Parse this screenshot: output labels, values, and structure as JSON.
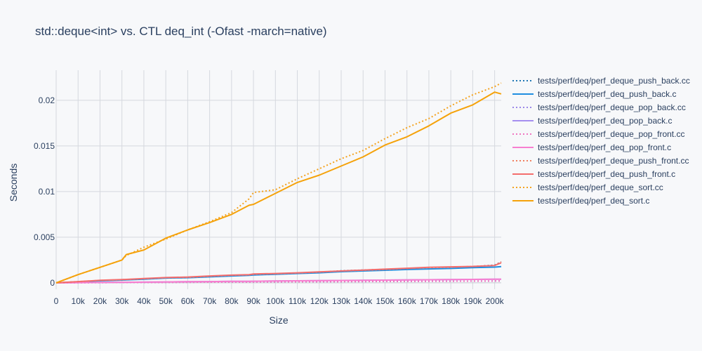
{
  "chart_data": {
    "type": "line",
    "title": "std::deque<int> vs. CTL deq_int (-Ofast -march=native)",
    "xlabel": "Size",
    "ylabel": "Seconds",
    "xlim": [
      0,
      203000
    ],
    "ylim": [
      -0.0007,
      0.0233
    ],
    "x_ticks": [
      0,
      10000,
      20000,
      30000,
      40000,
      50000,
      60000,
      70000,
      80000,
      90000,
      100000,
      110000,
      120000,
      130000,
      140000,
      150000,
      160000,
      170000,
      180000,
      190000,
      200000
    ],
    "x_tick_labels": [
      "0",
      "10k",
      "20k",
      "30k",
      "40k",
      "50k",
      "60k",
      "70k",
      "80k",
      "90k",
      "100k",
      "110k",
      "120k",
      "130k",
      "140k",
      "150k",
      "160k",
      "170k",
      "180k",
      "190k",
      "200k"
    ],
    "y_ticks": [
      0,
      0.005,
      0.01,
      0.015,
      0.02
    ],
    "y_tick_labels": [
      "0",
      "0.005",
      "0.01",
      "0.015",
      "0.02"
    ],
    "grid": true,
    "legend_position": "right",
    "x": [
      0,
      10000,
      20000,
      30000,
      32000,
      40000,
      50000,
      60000,
      70000,
      80000,
      88000,
      90000,
      100000,
      110000,
      120000,
      130000,
      140000,
      150000,
      160000,
      170000,
      180000,
      190000,
      200000,
      203000
    ],
    "series": [
      {
        "name": "tests/perf/deq/perf_deque_push_back.cc",
        "color": "#1f77b4",
        "dash": "dot",
        "values": [
          0,
          0.00012,
          0.00024,
          0.00032,
          0.00034,
          0.00042,
          0.00055,
          0.00058,
          0.00068,
          0.00078,
          0.00086,
          0.0009,
          0.00098,
          0.00106,
          0.00116,
          0.00132,
          0.0014,
          0.00148,
          0.00156,
          0.00162,
          0.00168,
          0.00178,
          0.00195,
          0.0023
        ]
      },
      {
        "name": "tests/perf/deq/perf_deq_push_back.c",
        "color": "#1f8ee0",
        "dash": "solid",
        "values": [
          0,
          0.00011,
          0.00022,
          0.0003,
          0.00032,
          0.0004,
          0.00052,
          0.00056,
          0.00065,
          0.00075,
          0.00082,
          0.00086,
          0.00094,
          0.00102,
          0.0011,
          0.00122,
          0.0013,
          0.00138,
          0.00146,
          0.00152,
          0.00158,
          0.00166,
          0.00172,
          0.00178
        ]
      },
      {
        "name": "tests/perf/deq/perf_deque_pop_back.cc",
        "color": "#9b87e8",
        "dash": "dot",
        "values": [
          0,
          1e-05,
          2e-05,
          3e-05,
          3e-05,
          4e-05,
          5e-05,
          6e-05,
          7e-05,
          8e-05,
          8e-05,
          9e-05,
          0.0001,
          0.00011,
          0.00012,
          0.00013,
          0.00014,
          0.00015,
          0.00016,
          0.00017,
          0.00018,
          0.00019,
          0.0002,
          0.0002
        ]
      },
      {
        "name": "tests/perf/deq/perf_deq_pop_back.c",
        "color": "#a58ef0",
        "dash": "solid",
        "values": [
          0,
          2e-05,
          4e-05,
          6e-05,
          6e-05,
          8e-05,
          0.0001,
          0.00012,
          0.00014,
          0.00016,
          0.00017,
          0.00018,
          0.0002,
          0.00022,
          0.00024,
          0.00026,
          0.00028,
          0.0003,
          0.00032,
          0.00034,
          0.00036,
          0.00038,
          0.0004,
          0.0004
        ]
      },
      {
        "name": "tests/perf/deq/perf_deque_pop_front.cc",
        "color": "#f075c0",
        "dash": "dot",
        "values": [
          0,
          1e-05,
          2e-05,
          3e-05,
          3e-05,
          4e-05,
          5e-05,
          6e-05,
          7e-05,
          8e-05,
          8e-05,
          9e-05,
          0.0001,
          0.00011,
          0.00012,
          0.00013,
          0.00014,
          0.00015,
          0.00016,
          0.00017,
          0.00018,
          0.00019,
          0.0002,
          0.0002
        ]
      },
      {
        "name": "tests/perf/deq/perf_deq_pop_front.c",
        "color": "#f77fd0",
        "dash": "solid",
        "values": [
          0,
          2e-05,
          4e-05,
          6e-05,
          6e-05,
          8e-05,
          0.0001,
          0.00012,
          0.00014,
          0.00016,
          0.00017,
          0.00018,
          0.0002,
          0.00022,
          0.00024,
          0.00026,
          0.00028,
          0.0003,
          0.00032,
          0.00034,
          0.00036,
          0.00038,
          0.0004,
          0.0004
        ]
      },
      {
        "name": "tests/perf/deq/perf_deque_push_front.cc",
        "color": "#f08060",
        "dash": "dot",
        "values": [
          0,
          0.00013,
          0.00026,
          0.00035,
          0.00036,
          0.00045,
          0.00056,
          0.0006,
          0.00072,
          0.00082,
          0.00088,
          0.00094,
          0.001,
          0.00108,
          0.00118,
          0.0013,
          0.00138,
          0.00146,
          0.00158,
          0.00166,
          0.0017,
          0.0018,
          0.0019,
          0.0023
        ]
      },
      {
        "name": "tests/perf/deq/perf_deq_push_front.c",
        "color": "#f46d6d",
        "dash": "solid",
        "values": [
          0,
          0.00014,
          0.00028,
          0.00036,
          0.00038,
          0.00048,
          0.00058,
          0.00064,
          0.00075,
          0.00085,
          0.0009,
          0.00098,
          0.00102,
          0.0011,
          0.0012,
          0.0013,
          0.0014,
          0.0015,
          0.0016,
          0.0017,
          0.00175,
          0.0018,
          0.0019,
          0.0022
        ]
      },
      {
        "name": "tests/perf/deq/perf_deque_sort.cc",
        "color": "#f4a320",
        "dash": "dot",
        "values": [
          0,
          0.0009,
          0.0017,
          0.0025,
          0.003,
          0.0039,
          0.0048,
          0.0058,
          0.0067,
          0.0077,
          0.0092,
          0.0099,
          0.0102,
          0.0114,
          0.0125,
          0.0136,
          0.0145,
          0.0158,
          0.017,
          0.018,
          0.0194,
          0.0206,
          0.0215,
          0.0219
        ]
      },
      {
        "name": "tests/perf/deq/perf_deq_sort.c",
        "color": "#f5a20a",
        "dash": "solid",
        "values": [
          0,
          0.0009,
          0.0017,
          0.0025,
          0.0031,
          0.0036,
          0.0049,
          0.0058,
          0.0066,
          0.0075,
          0.0085,
          0.0086,
          0.0098,
          0.011,
          0.0118,
          0.0128,
          0.0138,
          0.0151,
          0.016,
          0.0172,
          0.0186,
          0.0195,
          0.0209,
          0.0207
        ]
      }
    ]
  }
}
